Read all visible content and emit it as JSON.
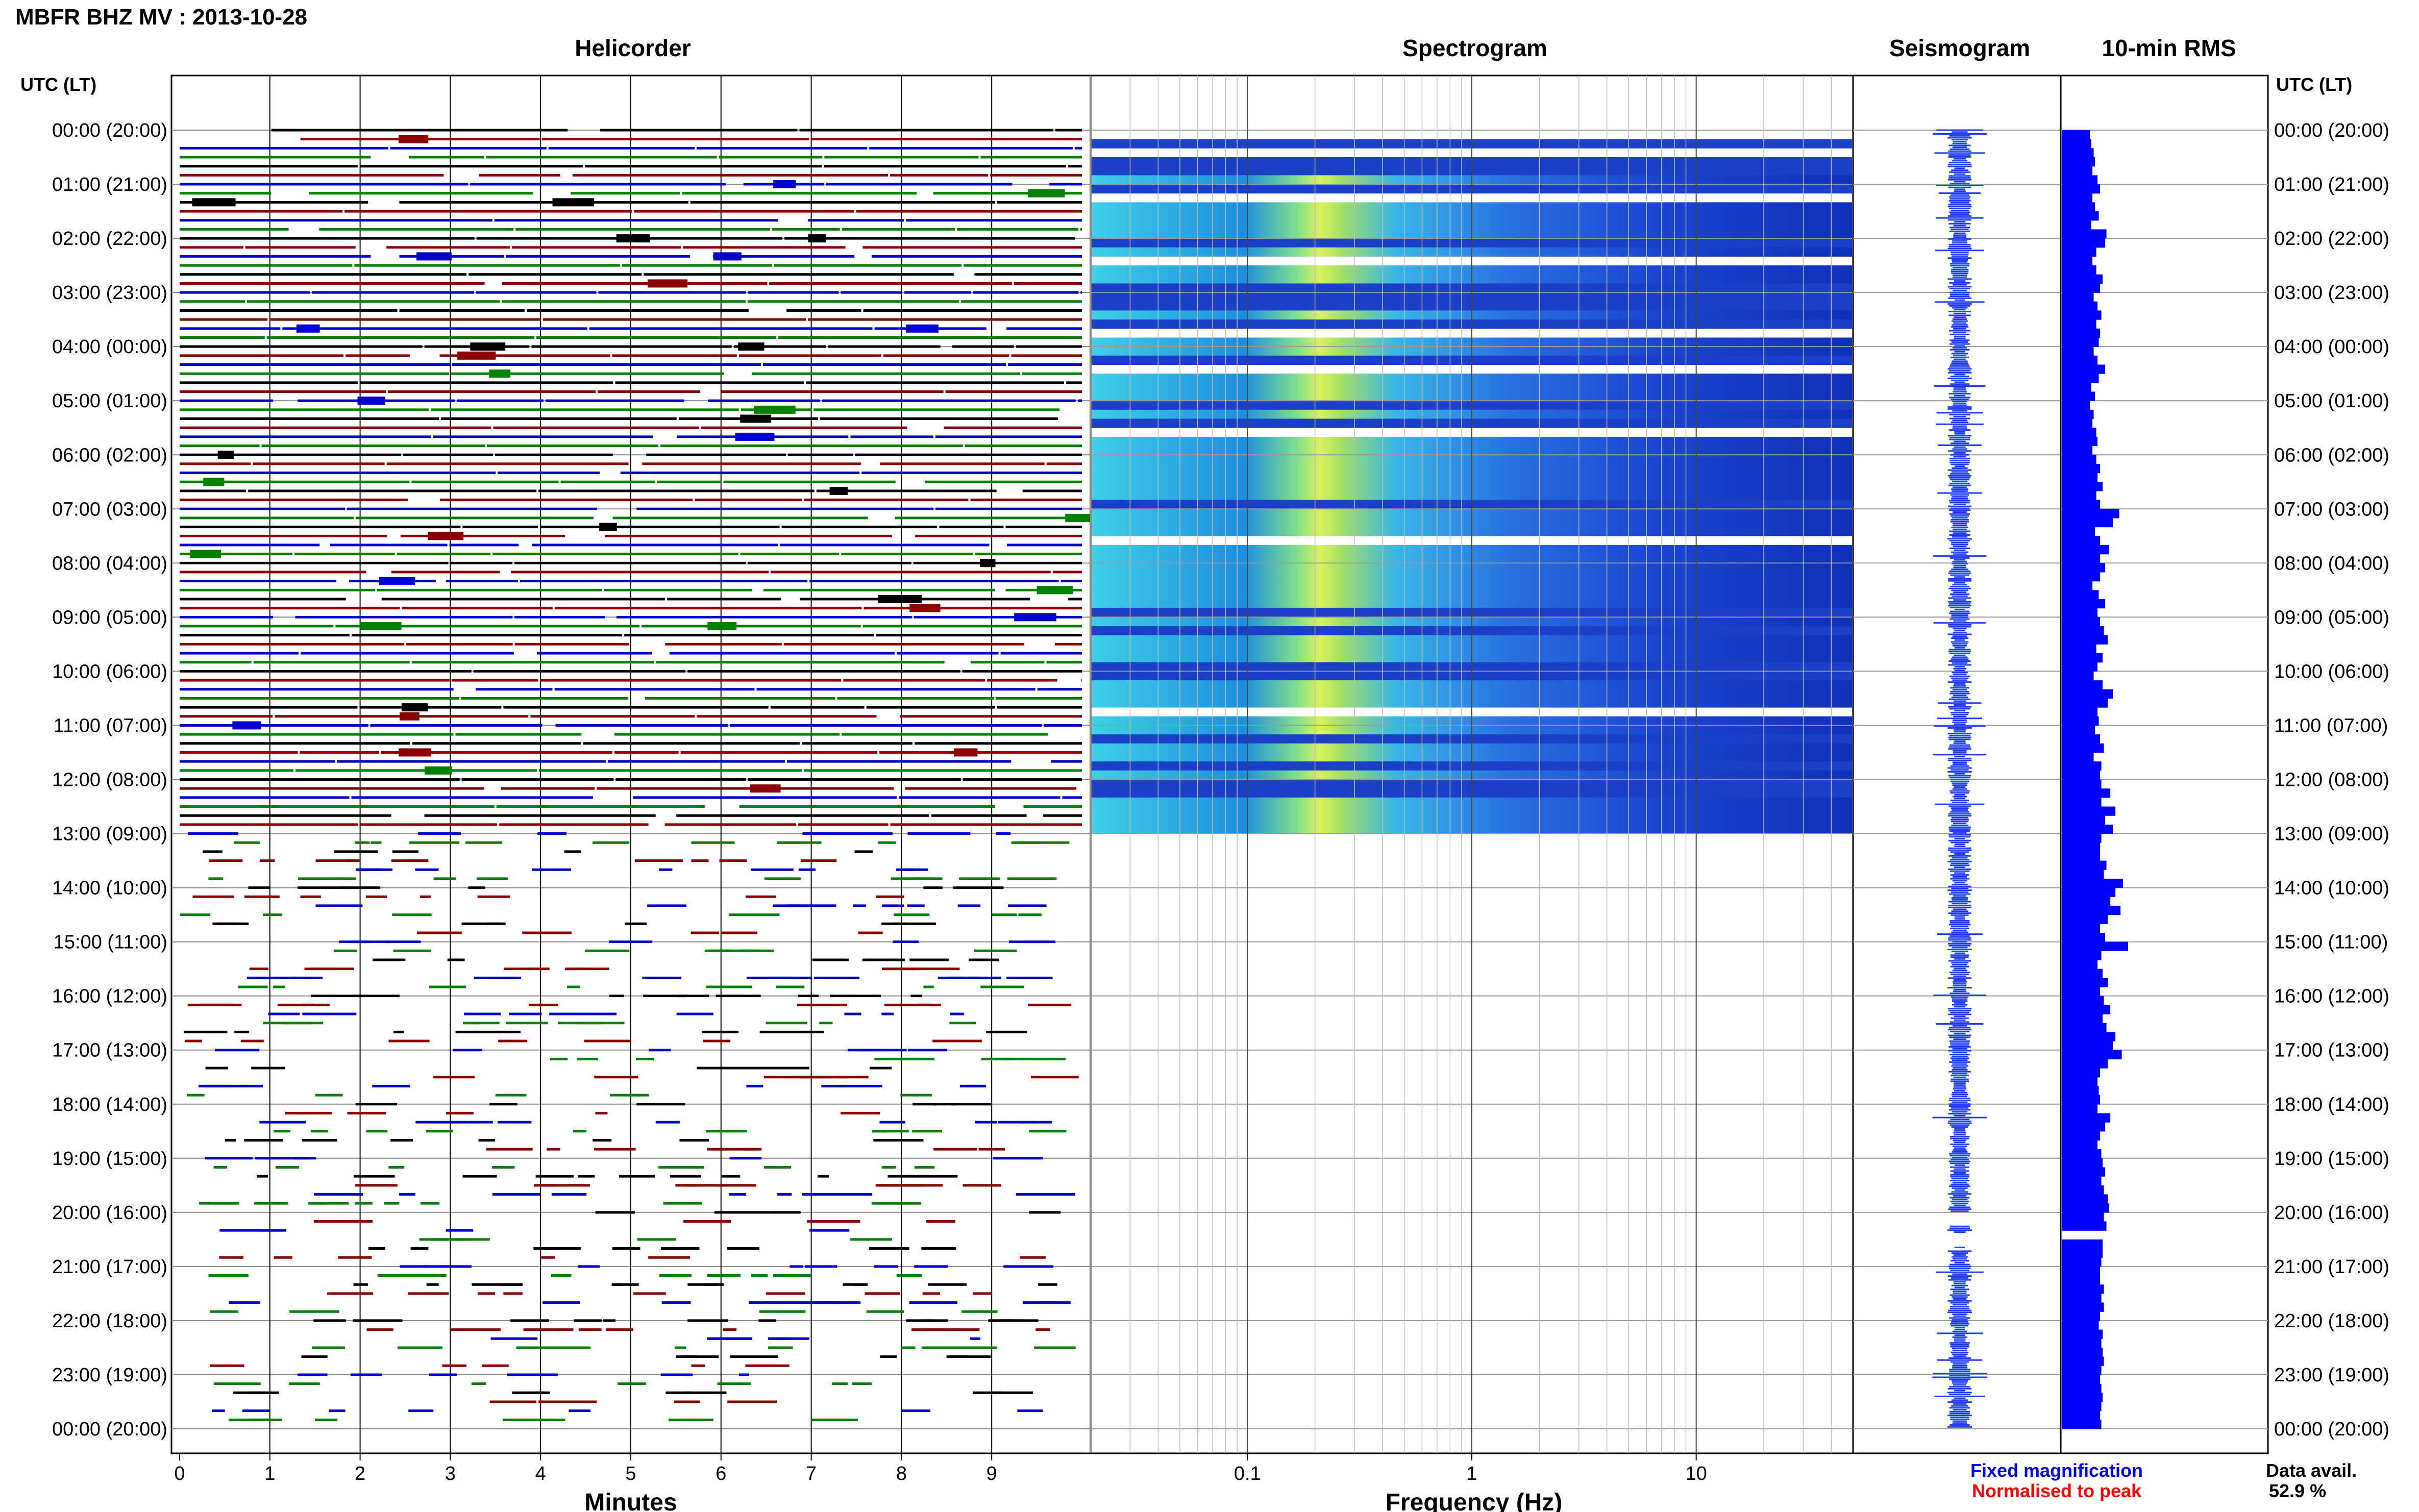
{
  "header": {
    "title": "MBFR BHZ MV : 2013-10-28"
  },
  "panels": {
    "helicorder": "Helicorder",
    "spectrogram": "Spectrogram",
    "seismogram": "Seismogram",
    "rms": "10-min RMS"
  },
  "axes": {
    "utc_header_left": "UTC (LT)",
    "utc_header_right": "UTC (LT)",
    "minutes_label": "Minutes",
    "frequency_label": "Frequency (Hz)",
    "minute_ticks": [
      "0",
      "1",
      "2",
      "3",
      "4",
      "5",
      "6",
      "7",
      "8",
      "9"
    ],
    "frequency_ticks": [
      "0.1",
      "1",
      "10"
    ]
  },
  "legend": {
    "fixed": "Fixed magnification",
    "normalised": "Normalised to peak"
  },
  "availability": {
    "label": "Data avail.",
    "value": "52.9 %"
  },
  "colors": {
    "trace_cycle": [
      "#000000",
      "#8b0000",
      "#0000cd",
      "#008000"
    ],
    "fixed": "#0000ff",
    "normalised": "#ff0000",
    "rms_bar": "#0000ff"
  },
  "chart_data": {
    "type": "heatmap",
    "time_labels": [
      "00:00 (20:00)",
      "01:00 (21:00)",
      "02:00 (22:00)",
      "03:00 (23:00)",
      "04:00 (00:00)",
      "05:00 (01:00)",
      "06:00 (02:00)",
      "07:00 (03:00)",
      "08:00 (04:00)",
      "09:00 (05:00)",
      "10:00 (06:00)",
      "11:00 (07:00)",
      "12:00 (08:00)",
      "13:00 (09:00)",
      "14:00 (10:00)",
      "15:00 (11:00)",
      "16:00 (12:00)",
      "17:00 (13:00)",
      "18:00 (14:00)",
      "19:00 (15:00)",
      "20:00 (16:00)",
      "21:00 (17:00)",
      "22:00 (18:00)",
      "23:00 (19:00)",
      "00:00 (20:00)"
    ],
    "minutes_range": [
      0,
      10
    ],
    "frequency_range_hz": [
      0.02,
      50
    ],
    "frequency_scale": "log",
    "rms_10min": [
      0.22,
      0.23,
      0.25,
      0.26,
      0.24,
      0.28,
      0.3,
      0.24,
      0.26,
      0.29,
      0.23,
      0.35,
      0.34,
      0.27,
      0.24,
      0.27,
      0.32,
      0.3,
      0.25,
      0.28,
      0.31,
      0.27,
      0.3,
      0.29,
      0.25,
      0.28,
      0.34,
      0.29,
      0.23,
      0.26,
      0.22,
      0.25,
      0.24,
      0.27,
      0.28,
      0.24,
      0.27,
      0.3,
      0.28,
      0.32,
      0.27,
      0.3,
      0.45,
      0.4,
      0.26,
      0.3,
      0.37,
      0.3,
      0.34,
      0.3,
      0.24,
      0.29,
      0.34,
      0.28,
      0.3,
      0.33,
      0.36,
      0.27,
      0.32,
      0.28,
      0.25,
      0.32,
      0.4,
      0.36,
      0.28,
      0.29,
      0.26,
      0.3,
      0.33,
      0.25,
      0.31,
      0.3,
      0.31,
      0.38,
      0.31,
      0.42,
      0.34,
      0.4,
      0.31,
      0.3,
      0.3,
      0.35,
      0.33,
      0.48,
      0.42,
      0.38,
      0.46,
      0.36,
      0.3,
      0.34,
      0.52,
      0.31,
      0.28,
      0.32,
      0.36,
      0.3,
      0.33,
      0.38,
      0.32,
      0.35,
      0.42,
      0.4,
      0.47,
      0.36,
      0.3,
      0.28,
      0.29,
      0.3,
      0.28,
      0.38,
      0.34,
      0.3,
      0.28,
      0.31,
      0.32,
      0.34,
      0.31,
      0.33,
      0.36,
      0.37,
      0.33,
      0.35,
      null,
      0.32,
      0.32,
      0.31,
      0.3,
      0.3,
      0.33,
      0.31,
      0.33,
      0.3,
      0.29,
      0.32,
      0.31,
      0.32,
      0.33,
      0.31,
      0.3,
      0.31,
      0.32,
      0.31,
      0.3,
      0.31
    ],
    "data_gaps_hours": [
      [
        20.0,
        20.2
      ]
    ]
  }
}
